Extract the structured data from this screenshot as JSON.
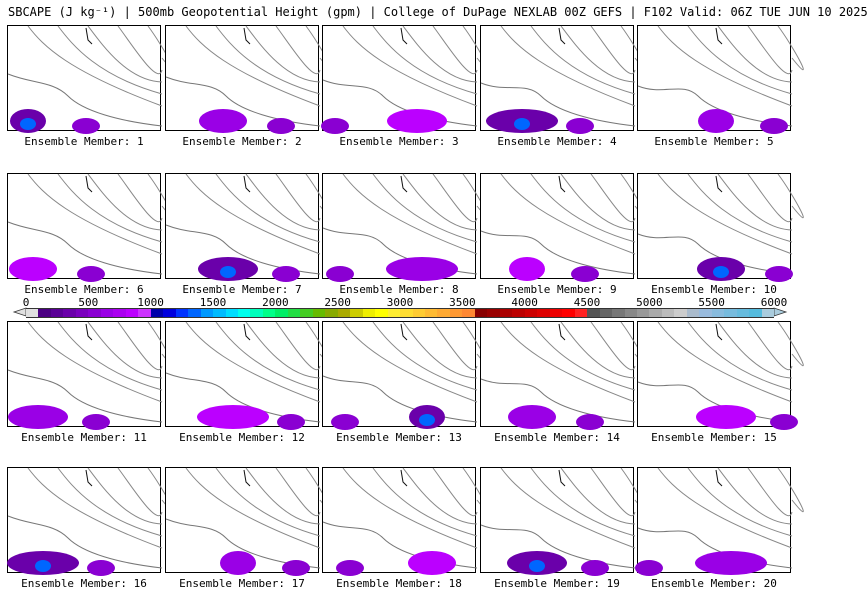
{
  "title": "SBCAPE (J kg⁻¹) | 500mb Geopotential Height (gpm) | College of DuPage NEXLAB 00Z GEFS | F102 Valid: 06Z TUE JUN 10 2025",
  "panels": [
    {
      "label": "Ensemble Member: 1"
    },
    {
      "label": "Ensemble Member: 2"
    },
    {
      "label": "Ensemble Member: 3"
    },
    {
      "label": "Ensemble Member: 4"
    },
    {
      "label": "Ensemble Member: 5"
    },
    {
      "label": "Ensemble Member: 6"
    },
    {
      "label": "Ensemble Member: 7"
    },
    {
      "label": "Ensemble Member: 8"
    },
    {
      "label": "Ensemble Member: 9"
    },
    {
      "label": "Ensemble Member: 10"
    },
    {
      "label": "Ensemble Member: 11"
    },
    {
      "label": "Ensemble Member: 12"
    },
    {
      "label": "Ensemble Member: 13"
    },
    {
      "label": "Ensemble Member: 14"
    },
    {
      "label": "Ensemble Member: 15"
    },
    {
      "label": "Ensemble Member: 16"
    },
    {
      "label": "Ensemble Member: 17"
    },
    {
      "label": "Ensemble Member: 18"
    },
    {
      "label": "Ensemble Member: 19"
    },
    {
      "label": "Ensemble Member: 20"
    }
  ],
  "colorbar": {
    "ticks": [
      "0",
      "500",
      "1000",
      "1500",
      "2000",
      "2500",
      "3000",
      "3500",
      "4000",
      "4500",
      "5000",
      "5500",
      "6000"
    ],
    "colors": [
      "#e0e0e0",
      "#4b0082",
      "#5a0096",
      "#6a00aa",
      "#7a00be",
      "#8a00d2",
      "#9a00e6",
      "#aa00f0",
      "#bb00ff",
      "#cc33ff",
      "#0000aa",
      "#0000dd",
      "#0033ff",
      "#0066ff",
      "#0099ff",
      "#00bbff",
      "#00ddff",
      "#00ffee",
      "#00ffbb",
      "#00ff88",
      "#00ee66",
      "#22dd44",
      "#44cc22",
      "#66bb00",
      "#88aa00",
      "#aaaa00",
      "#cccc00",
      "#eeee00",
      "#ffff00",
      "#ffee33",
      "#ffdd33",
      "#ffcc33",
      "#ffbb33",
      "#ffaa33",
      "#ff9933",
      "#ff8833",
      "#880000",
      "#990000",
      "#aa0000",
      "#bb0000",
      "#cc0000",
      "#dd0000",
      "#ee0000",
      "#ff0000",
      "#ff2222",
      "#555555",
      "#666666",
      "#777777",
      "#888888",
      "#999999",
      "#aaaaaa",
      "#bbbbbb",
      "#cccccc",
      "#aabbcc",
      "#99bbdd",
      "#88bbdd",
      "#77bbdd",
      "#66bbdd",
      "#55bbdd",
      "#aaccdd"
    ]
  }
}
